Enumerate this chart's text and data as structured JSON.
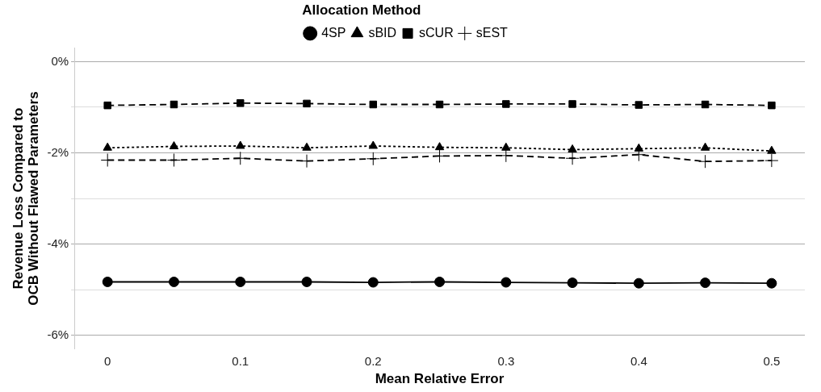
{
  "chart_data": {
    "type": "line",
    "xlabel": "Mean Relative Error",
    "ylabel": "Revenue Loss Compared to\nOCB Without Flawed Parameters",
    "legend_title": "Allocation Method",
    "legend": "top",
    "x": [
      0,
      0.05,
      0.1,
      0.15,
      0.2,
      0.25,
      0.3,
      0.35,
      0.4,
      0.45,
      0.5
    ],
    "series": [
      {
        "name": "4SP",
        "color": "#000000",
        "marker": "circle",
        "line_style": "solid",
        "values": [
          -4.83,
          -4.83,
          -4.83,
          -4.83,
          -4.84,
          -4.83,
          -4.84,
          -4.85,
          -4.86,
          -4.85,
          -4.86
        ]
      },
      {
        "name": "sBID",
        "color": "#000000",
        "marker": "triangle",
        "line_style": "dotted",
        "values": [
          -1.89,
          -1.86,
          -1.85,
          -1.89,
          -1.85,
          -1.88,
          -1.89,
          -1.93,
          -1.91,
          -1.89,
          -1.96
        ]
      },
      {
        "name": "sCUR",
        "color": "#000000",
        "marker": "square",
        "line_style": "dashed",
        "values": [
          -0.96,
          -0.94,
          -0.91,
          -0.92,
          -0.94,
          -0.94,
          -0.93,
          -0.93,
          -0.95,
          -0.94,
          -0.96
        ]
      },
      {
        "name": "sEST",
        "color": "#000000",
        "marker": "cross",
        "line_style": "dashed",
        "values": [
          -2.16,
          -2.16,
          -2.12,
          -2.18,
          -2.13,
          -2.07,
          -2.06,
          -2.12,
          -2.04,
          -2.19,
          -2.17
        ]
      }
    ],
    "xlim": [
      -0.025,
      0.525
    ],
    "xticks": [
      0,
      0.1,
      0.2,
      0.3,
      0.4,
      0.5
    ],
    "ylim": [
      -6.3,
      0.3
    ],
    "yticks": [
      {
        "value": -6,
        "label": "-6%"
      },
      {
        "value": -5,
        "label": null
      },
      {
        "value": -4,
        "label": "-4%"
      },
      {
        "value": -3,
        "label": null
      },
      {
        "value": -2,
        "label": "-2%"
      },
      {
        "value": -1,
        "label": null
      },
      {
        "value": 0,
        "label": "0%"
      }
    ],
    "grid": "y"
  }
}
